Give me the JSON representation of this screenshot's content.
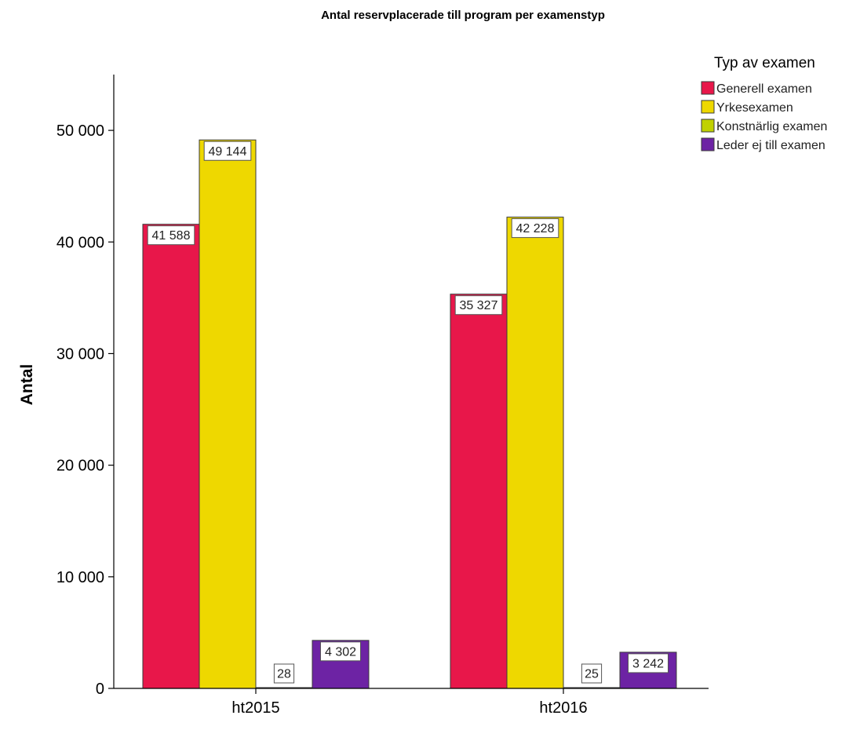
{
  "chart_data": {
    "type": "bar",
    "title": "Antal reservplacerade till program per examenstyp",
    "xlabel": "",
    "ylabel": "Antal",
    "categories": [
      "ht2015",
      "ht2016"
    ],
    "ylim": [
      0,
      55000
    ],
    "yticks": [
      0,
      10000,
      20000,
      30000,
      40000,
      50000
    ],
    "ytick_labels": [
      "0",
      "10 000",
      "20 000",
      "30 000",
      "40 000",
      "50 000"
    ],
    "grid": false,
    "legend": {
      "title": "Typ av examen",
      "placement": "top-right"
    },
    "series": [
      {
        "name": "Generell examen",
        "color": "#e8174a",
        "values": [
          41588,
          35327
        ],
        "labels": [
          "41 588",
          "35 327"
        ]
      },
      {
        "name": "Yrkesexamen",
        "color": "#eed800",
        "values": [
          49144,
          42228
        ],
        "labels": [
          "49 144",
          "42 228"
        ]
      },
      {
        "name": "Konstnärlig examen",
        "color": "#c0d100",
        "values": [
          28,
          25
        ],
        "labels": [
          "28",
          "25"
        ]
      },
      {
        "name": "Leder ej till examen",
        "color": "#6d23a4",
        "values": [
          4302,
          3242
        ],
        "labels": [
          "4 302",
          "3 242"
        ]
      }
    ]
  }
}
